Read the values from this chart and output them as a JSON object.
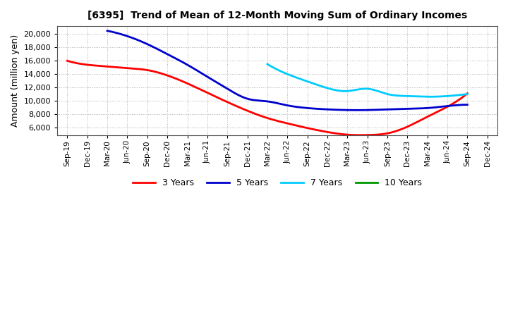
{
  "title": "[6395]  Trend of Mean of 12-Month Moving Sum of Ordinary Incomes",
  "ylabel": "Amount (million yen)",
  "background_color": "#ffffff",
  "grid_color": "#aaaaaa",
  "ylim": [
    4800,
    21200
  ],
  "yticks": [
    6000,
    8000,
    10000,
    12000,
    14000,
    16000,
    18000,
    20000
  ],
  "x_labels": [
    "Sep-19",
    "Dec-19",
    "Mar-20",
    "Jun-20",
    "Sep-20",
    "Dec-20",
    "Mar-21",
    "Jun-21",
    "Sep-21",
    "Dec-21",
    "Mar-22",
    "Jun-22",
    "Sep-22",
    "Dec-22",
    "Mar-23",
    "Jun-23",
    "Sep-23",
    "Dec-23",
    "Mar-24",
    "Jun-24",
    "Sep-24",
    "Dec-24"
  ],
  "series": {
    "3 Years": {
      "color": "#ff0000",
      "data_x": [
        0,
        1,
        2,
        3,
        4,
        5,
        6,
        7,
        8,
        9,
        10,
        11,
        12,
        13,
        14,
        15,
        16,
        17,
        18,
        19,
        20
      ],
      "data_y": [
        16000,
        15400,
        15150,
        14900,
        14600,
        13800,
        12600,
        11200,
        9800,
        8500,
        7400,
        6600,
        5900,
        5300,
        4900,
        4850,
        5100,
        6100,
        7600,
        9100,
        11100
      ]
    },
    "5 Years": {
      "color": "#0000cc",
      "data_x": [
        2,
        3,
        4,
        5,
        6,
        7,
        8,
        9,
        10,
        11,
        12,
        13,
        14,
        15,
        16,
        17,
        18,
        19,
        20
      ],
      "data_y": [
        20500,
        19700,
        18500,
        17000,
        15400,
        13600,
        11800,
        10300,
        9900,
        9300,
        8900,
        8700,
        8600,
        8600,
        8700,
        8800,
        8900,
        9200,
        9400
      ]
    },
    "7 Years": {
      "color": "#00ccff",
      "data_x": [
        10,
        11,
        12,
        13,
        14,
        15,
        16,
        17,
        18,
        19,
        20
      ],
      "data_y": [
        15500,
        14000,
        12900,
        11900,
        11450,
        11800,
        11000,
        10700,
        10600,
        10700,
        11000
      ]
    },
    "10 Years": {
      "color": "#009900",
      "data_x": [],
      "data_y": []
    }
  },
  "legend_entries": [
    {
      "label": "3 Years",
      "color": "#ff0000"
    },
    {
      "label": "5 Years",
      "color": "#0000cc"
    },
    {
      "label": "7 Years",
      "color": "#00ccff"
    },
    {
      "label": "10 Years",
      "color": "#009900"
    }
  ]
}
